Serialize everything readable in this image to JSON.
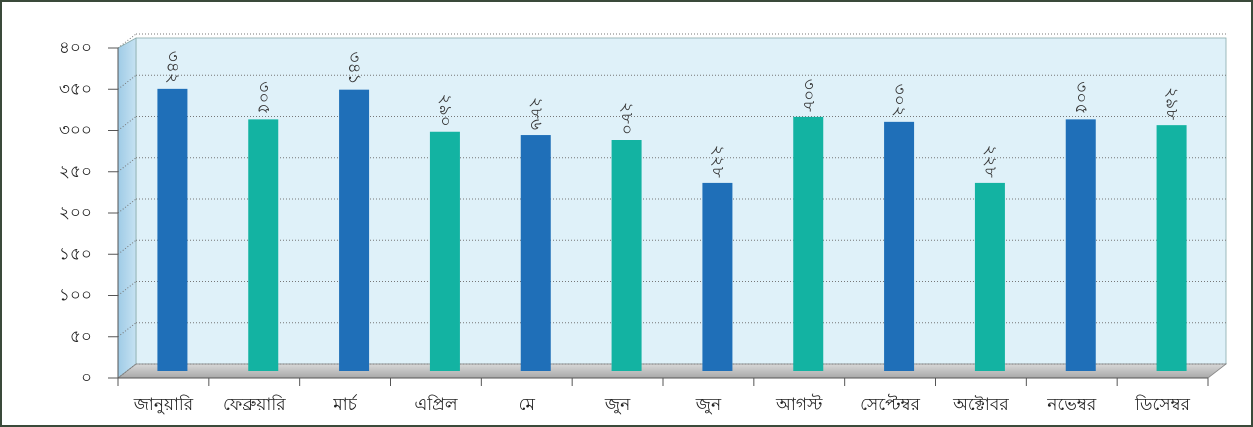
{
  "chart_data": {
    "type": "bar",
    "categories": [
      "জানুয়ারি",
      "ফেব্রুয়ারি",
      "মার্চ",
      "এপ্রিল",
      "মে",
      "জুন",
      "জুন",
      "আগস্ট",
      "সেপ্টেম্বর",
      "অক্টোবর",
      "নভেম্বর",
      "ডিসেম্বর"
    ],
    "values": [
      342,
      305,
      341,
      290,
      286,
      280,
      228,
      308,
      302,
      228,
      305,
      298
    ],
    "value_labels": [
      "৩৪২",
      "৩০৫",
      "৩৪১",
      "২৯০",
      "২৮৬",
      "২৮০",
      "২২৮",
      "৩০৮",
      "৩০২",
      "২২৮",
      "৩০৫",
      "২৯৮"
    ],
    "colors": [
      "#1f6fb8",
      "#13b3a2",
      "#1f6fb8",
      "#13b3a2",
      "#1f6fb8",
      "#13b3a2",
      "#1f6fb8",
      "#13b3a2",
      "#1f6fb8",
      "#13b3a2",
      "#1f6fb8",
      "#13b3a2"
    ],
    "ylim": [
      0,
      400
    ],
    "yticks": [
      {
        "value": 0,
        "label": "০"
      },
      {
        "value": 50,
        "label": "৫০"
      },
      {
        "value": 100,
        "label": "১০০"
      },
      {
        "value": 150,
        "label": "১৫০"
      },
      {
        "value": 200,
        "label": "২০০"
      },
      {
        "value": 250,
        "label": "২৫০"
      },
      {
        "value": 300,
        "label": "৩০০"
      },
      {
        "value": 350,
        "label": "৩৫০"
      },
      {
        "value": 400,
        "label": "৪০০"
      }
    ],
    "grid": true
  }
}
